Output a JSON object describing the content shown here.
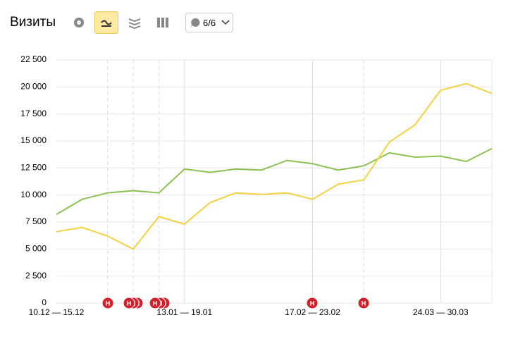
{
  "chart_data": {
    "type": "line",
    "title": "Визиты",
    "notes_filter": "6/6",
    "note_icon": "Н",
    "categories": [
      "10.12 — 15.12",
      null,
      null,
      null,
      null,
      "13.01 — 19.01",
      null,
      null,
      null,
      null,
      "17.02 — 23.02",
      null,
      null,
      null,
      null,
      "24.03 — 30.03",
      null,
      null
    ],
    "series": [
      {
        "color": "#8cc152",
        "values": [
          8200,
          9600,
          10200,
          10400,
          10200,
          12400,
          12100,
          12400,
          12300,
          13200,
          12900,
          12300,
          12700,
          13900,
          13500,
          13600,
          13100,
          14300
        ]
      },
      {
        "color": "#f5d142",
        "values": [
          6600,
          7000,
          6200,
          5000,
          8000,
          7300,
          9300,
          10200,
          10050,
          10200,
          9600,
          11000,
          11400,
          14900,
          16500,
          19700,
          20300,
          19400
        ]
      }
    ],
    "ylim": [
      0,
      22500
    ],
    "yticks": [
      0,
      {
        "value": 2500,
        "label": "2 500"
      },
      {
        "value": 5000,
        "label": "5 000"
      },
      {
        "value": 7500,
        "label": "7 500"
      },
      {
        "value": 10000,
        "label": "10 000"
      },
      {
        "value": 12500,
        "label": "12 500"
      },
      {
        "value": 15000,
        "label": "15 000"
      },
      {
        "value": 17500,
        "label": "17 500"
      },
      {
        "value": 20000,
        "label": "20 000"
      },
      {
        "value": 22500,
        "label": "22 500"
      }
    ],
    "grid": true
  }
}
